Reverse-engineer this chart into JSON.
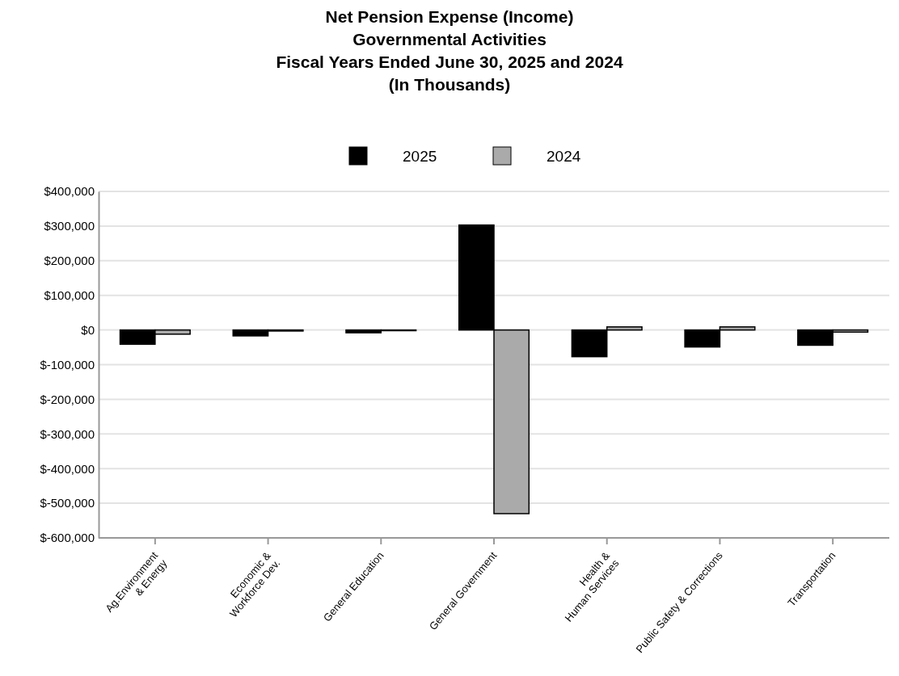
{
  "chart_data": {
    "type": "bar",
    "title": "Net Pension Expense (Income)\nGovernmental Activities\nFiscal Years Ended June 30, 2025 and 2024\n(In Thousands)",
    "categories": [
      "Ag.Environment\n& Energy",
      "Economic &\nWorkforce Dev.",
      "General Education",
      "General Government",
      "Health &\nHuman Services",
      "Public Safety & Corrections",
      "Transportation"
    ],
    "series": [
      {
        "name": "2025",
        "color": "#000000",
        "values": [
          -41000,
          -17000,
          -8000,
          303000,
          -77000,
          -49000,
          -44000
        ]
      },
      {
        "name": "2024",
        "color": "#aaaaaa",
        "values": [
          -12000,
          -3000,
          -2000,
          -530000,
          9000,
          9000,
          -6000
        ]
      }
    ],
    "ylim": [
      -600000,
      400000
    ],
    "yticks": [
      {
        "value": -600000,
        "label": "$-600,000"
      },
      {
        "value": -500000,
        "label": "$-500,000"
      },
      {
        "value": -400000,
        "label": "$-400,000"
      },
      {
        "value": -300000,
        "label": "$-300,000"
      },
      {
        "value": -200000,
        "label": "$-200,000"
      },
      {
        "value": -100000,
        "label": "$-100,000"
      },
      {
        "value": 0,
        "label": "$0"
      },
      {
        "value": 100000,
        "label": "$100,000"
      },
      {
        "value": 200000,
        "label": "$200,000"
      },
      {
        "value": 300000,
        "label": "$300,000"
      },
      {
        "value": 400000,
        "label": "$400,000"
      }
    ],
    "grid": "y",
    "legend": "top"
  }
}
